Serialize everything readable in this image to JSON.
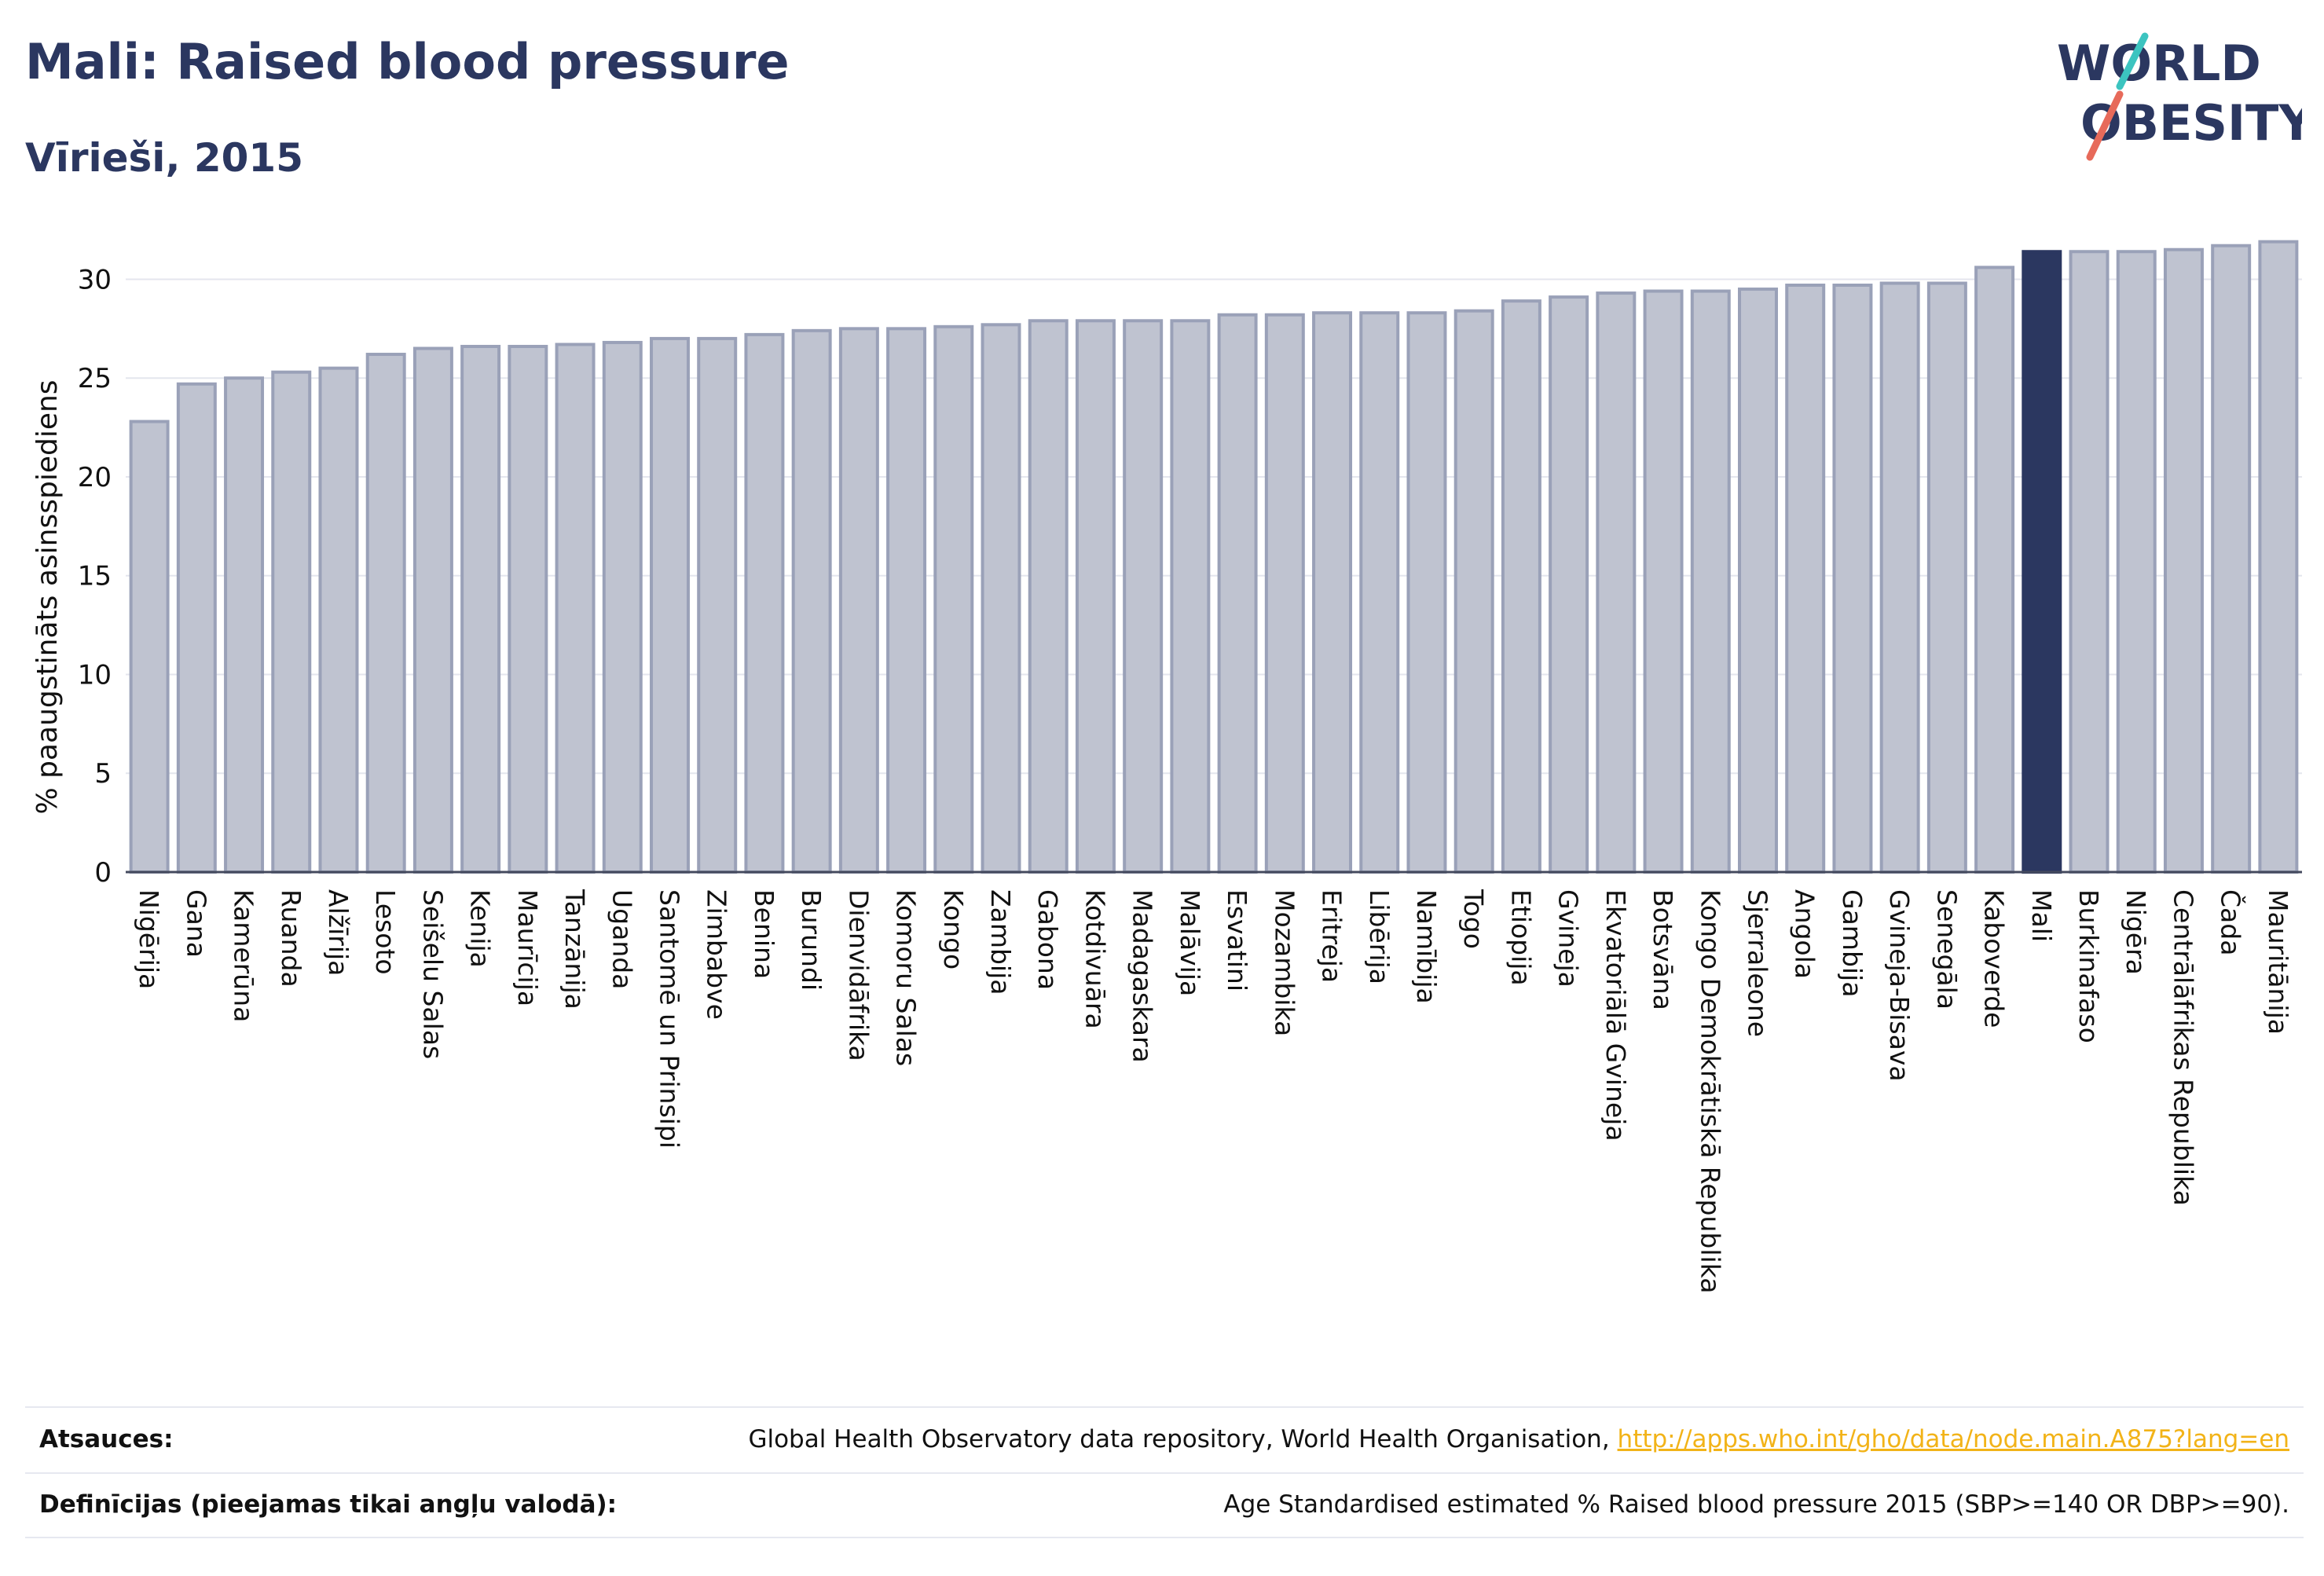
{
  "header": {
    "title": "Mali: Raised blood pressure",
    "subtitle": "Vīrieši, 2015"
  },
  "logo": {
    "line1": "WORLD",
    "line2": "OBESITY",
    "accent_colors": [
      "#3cc4c0",
      "#e76a5a"
    ],
    "brand_color": "#2b3760"
  },
  "chart_data": {
    "type": "bar",
    "ylabel": "% paaugstināts asinsspiediens",
    "ylim": [
      0,
      33
    ],
    "yticks": [
      0,
      5,
      10,
      15,
      20,
      25,
      30
    ],
    "grid": true,
    "highlight": "Mali",
    "colors": {
      "bar": "#bfc3d0",
      "bar_edge": "#9aa1b8",
      "highlight": "#2b3760"
    },
    "categories": [
      "Nigērija",
      "Gana",
      "Kamerūna",
      "Ruanda",
      "Alžīrija",
      "Lesoto",
      "Seišelu Salas",
      "Kenija",
      "Maurīcija",
      "Tanzānija",
      "Uganda",
      "Santomē un Prinsipi",
      "Zimbabve",
      "Benina",
      "Burundi",
      "Dienvidāfrika",
      "Komoru Salas",
      "Kongo",
      "Zambija",
      "Gabona",
      "Kotdivuāra",
      "Madagaskara",
      "Malāvija",
      "Esvatini",
      "Mozambika",
      "Eritreja",
      "Libērija",
      "Namībija",
      "Togo",
      "Etiopija",
      "Gvineja",
      "Ekvatoriālā Gvineja",
      "Botsvāna",
      "Kongo Demokrātiskā Republika",
      "Sjerraleone",
      "Angola",
      "Gambija",
      "Gvineja-Bisava",
      "Senegāla",
      "Kaboverde",
      "Mali",
      "Burkinafaso",
      "Nigēra",
      "Centrālāfrikas Republika",
      "Čada",
      "Mauritānija"
    ],
    "values": [
      22.8,
      24.7,
      25.0,
      25.3,
      25.5,
      26.2,
      26.5,
      26.6,
      26.6,
      26.7,
      26.8,
      27.0,
      27.0,
      27.2,
      27.4,
      27.5,
      27.5,
      27.6,
      27.7,
      27.9,
      27.9,
      27.9,
      27.9,
      28.2,
      28.2,
      28.3,
      28.3,
      28.3,
      28.4,
      28.9,
      29.1,
      29.3,
      29.4,
      29.4,
      29.5,
      29.7,
      29.7,
      29.8,
      29.8,
      30.6,
      31.4,
      31.4,
      31.4,
      31.5,
      31.7,
      31.9
    ]
  },
  "footer": {
    "sources_label": "Atsauces:",
    "sources_text": "Global Health Observatory data repository, World Health Organisation,",
    "sources_link": "http://apps.who.int/gho/data/node.main.A875?lang=en",
    "definitions_label": "Definīcijas (pieejamas tikai angļu valodā):",
    "definitions_text": "Age Standardised estimated % Raised blood pressure 2015 (SBP>=140 OR DBP>=90)."
  }
}
